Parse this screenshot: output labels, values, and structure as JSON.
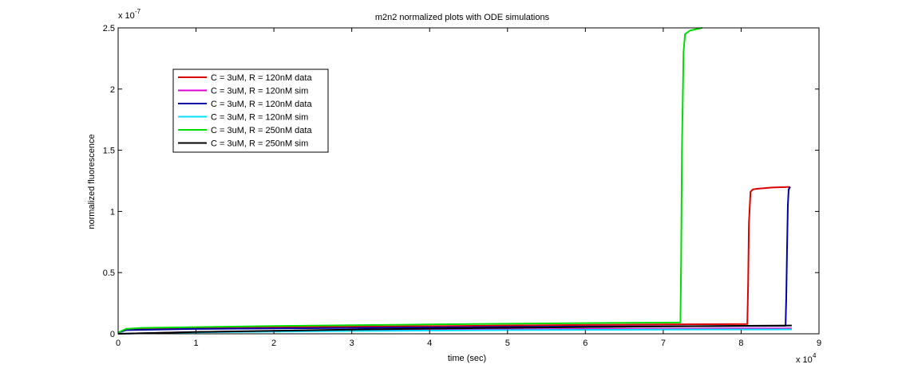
{
  "chart_data": {
    "type": "line",
    "title": "m2n2 normalized plots with ODE simulations",
    "xlabel": "time (sec)",
    "ylabel": "normalized fluorescence",
    "x_multiplier": "x 10",
    "x_exponent": "4",
    "y_multiplier": "x 10",
    "y_exponent": "-7",
    "xlim": [
      0,
      90000
    ],
    "ylim": [
      0,
      2.5e-07
    ],
    "x_ticks": [
      0,
      10000,
      20000,
      30000,
      40000,
      50000,
      60000,
      70000,
      80000,
      90000
    ],
    "x_tick_labels": [
      "0",
      "1",
      "2",
      "3",
      "4",
      "5",
      "6",
      "7",
      "8",
      "9"
    ],
    "y_ticks": [
      0,
      5e-08,
      1e-07,
      1.5e-07,
      2e-07,
      2.5e-07
    ],
    "y_tick_labels": [
      "0",
      "0.5",
      "1",
      "1.5",
      "2",
      "2.5"
    ],
    "grid": false,
    "legend_position": "top-left",
    "series": [
      {
        "name": "C = 3uM, R = 120nM data",
        "color": "#dd0000",
        "x": [
          0,
          1000,
          3000,
          10000,
          20000,
          30000,
          40000,
          50000,
          60000,
          70000,
          80800,
          80900,
          81000,
          81200,
          81500,
          82000,
          84000,
          86000,
          86300
        ],
        "y": [
          1e-09,
          3.5e-09,
          4.2e-09,
          4.8e-09,
          5.3e-09,
          5.8e-09,
          6.2e-09,
          6.8e-09,
          7.2e-09,
          7.6e-09,
          8e-09,
          4e-08,
          9e-08,
          1.16e-07,
          1.18e-07,
          1.185e-07,
          1.195e-07,
          1.2e-07,
          1.2e-07
        ]
      },
      {
        "name": "C = 3uM, R = 120nM sim",
        "color": "#dd00dd",
        "x": [
          0,
          10000,
          20000,
          30000,
          40000,
          50000,
          60000,
          70000,
          80000,
          86500
        ],
        "y": [
          0,
          1.5e-09,
          2.2e-09,
          2.8e-09,
          3.2e-09,
          3.6e-09,
          3.9e-09,
          4.1e-09,
          4.3e-09,
          4.4e-09
        ]
      },
      {
        "name": "C = 3uM, R = 120nM data",
        "color": "#0000aa",
        "x": [
          0,
          1000,
          10000,
          20000,
          30000,
          40000,
          50000,
          60000,
          70000,
          80000,
          85700,
          85800,
          85900,
          86000,
          86100,
          86300
        ],
        "y": [
          1e-09,
          3e-09,
          4e-09,
          4.4e-09,
          4.8e-09,
          5.2e-09,
          5.6e-09,
          5.9e-09,
          6.1e-09,
          6.3e-09,
          6.5e-09,
          3e-08,
          7e-08,
          1.05e-07,
          1.18e-07,
          1.2e-07
        ]
      },
      {
        "name": "C = 3uM, R = 120nM sim",
        "color": "#00e0ff",
        "x": [
          0,
          10000,
          20000,
          30000,
          40000,
          50000,
          60000,
          70000,
          80000,
          86500
        ],
        "y": [
          0,
          1.2e-09,
          1.8e-09,
          2.3e-09,
          2.7e-09,
          3e-09,
          3.2e-09,
          3.4e-09,
          3.5e-09,
          3.6e-09
        ]
      },
      {
        "name": "C = 3uM, R = 250nM data",
        "color": "#00dd00",
        "x": [
          0,
          1000,
          3000,
          10000,
          20000,
          30000,
          40000,
          50000,
          60000,
          70000,
          72200,
          72300,
          72400,
          72600,
          72800,
          73500,
          75000
        ],
        "y": [
          1e-09,
          4e-09,
          4.8e-09,
          5.5e-09,
          6.3e-09,
          7e-09,
          7.6e-09,
          8.2e-09,
          8.7e-09,
          9.1e-09,
          9.3e-09,
          6e-08,
          1.5e-07,
          2.3e-07,
          2.45e-07,
          2.48e-07,
          2.5e-07
        ]
      },
      {
        "name": "C = 3uM, R = 250nM sim",
        "color": "#000000",
        "x": [
          0,
          10000,
          20000,
          30000,
          40000,
          50000,
          60000,
          70000,
          80000,
          86500
        ],
        "y": [
          0,
          1.5e-09,
          2.5e-09,
          3.4e-09,
          4.2e-09,
          4.9e-09,
          5.5e-09,
          6e-09,
          6.5e-09,
          6.8e-09
        ]
      }
    ]
  }
}
